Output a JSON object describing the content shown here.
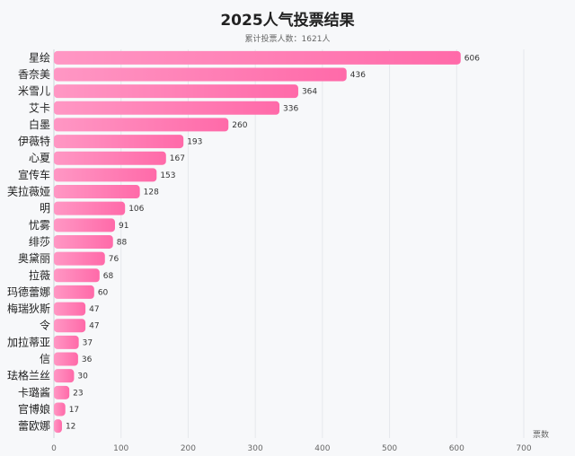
{
  "chart_data": {
    "type": "bar",
    "orientation": "horizontal",
    "title": "2025人气投票结果",
    "subtitle": "累计投票人数：1621人",
    "xlabel": "票数",
    "ylabel": "",
    "xlim": [
      0,
      700
    ],
    "xticks": [
      0,
      100,
      200,
      300,
      400,
      500,
      600,
      700
    ],
    "grid": true,
    "colors": {
      "bar_start": "#ff97c4",
      "bar_end": "#ff6aa9",
      "text": "#222222",
      "grid": "#e6e8ec"
    },
    "categories": [
      "星绘",
      "香奈美",
      "米雪儿",
      "艾卡",
      "白墨",
      "伊薇特",
      "心夏",
      "宣传车",
      "芙拉薇娅",
      "明",
      "忧雾",
      "绯莎",
      "奥黛丽",
      "拉薇",
      "玛德蕾娜",
      "梅瑞狄斯",
      "令",
      "加拉蒂亚",
      "信",
      "珐格兰丝",
      "卡璐酱",
      "官博娘",
      "蕾欧娜"
    ],
    "values": [
      606,
      436,
      364,
      336,
      260,
      193,
      167,
      153,
      128,
      106,
      91,
      88,
      76,
      68,
      60,
      47,
      47,
      37,
      36,
      30,
      23,
      17,
      12
    ]
  }
}
